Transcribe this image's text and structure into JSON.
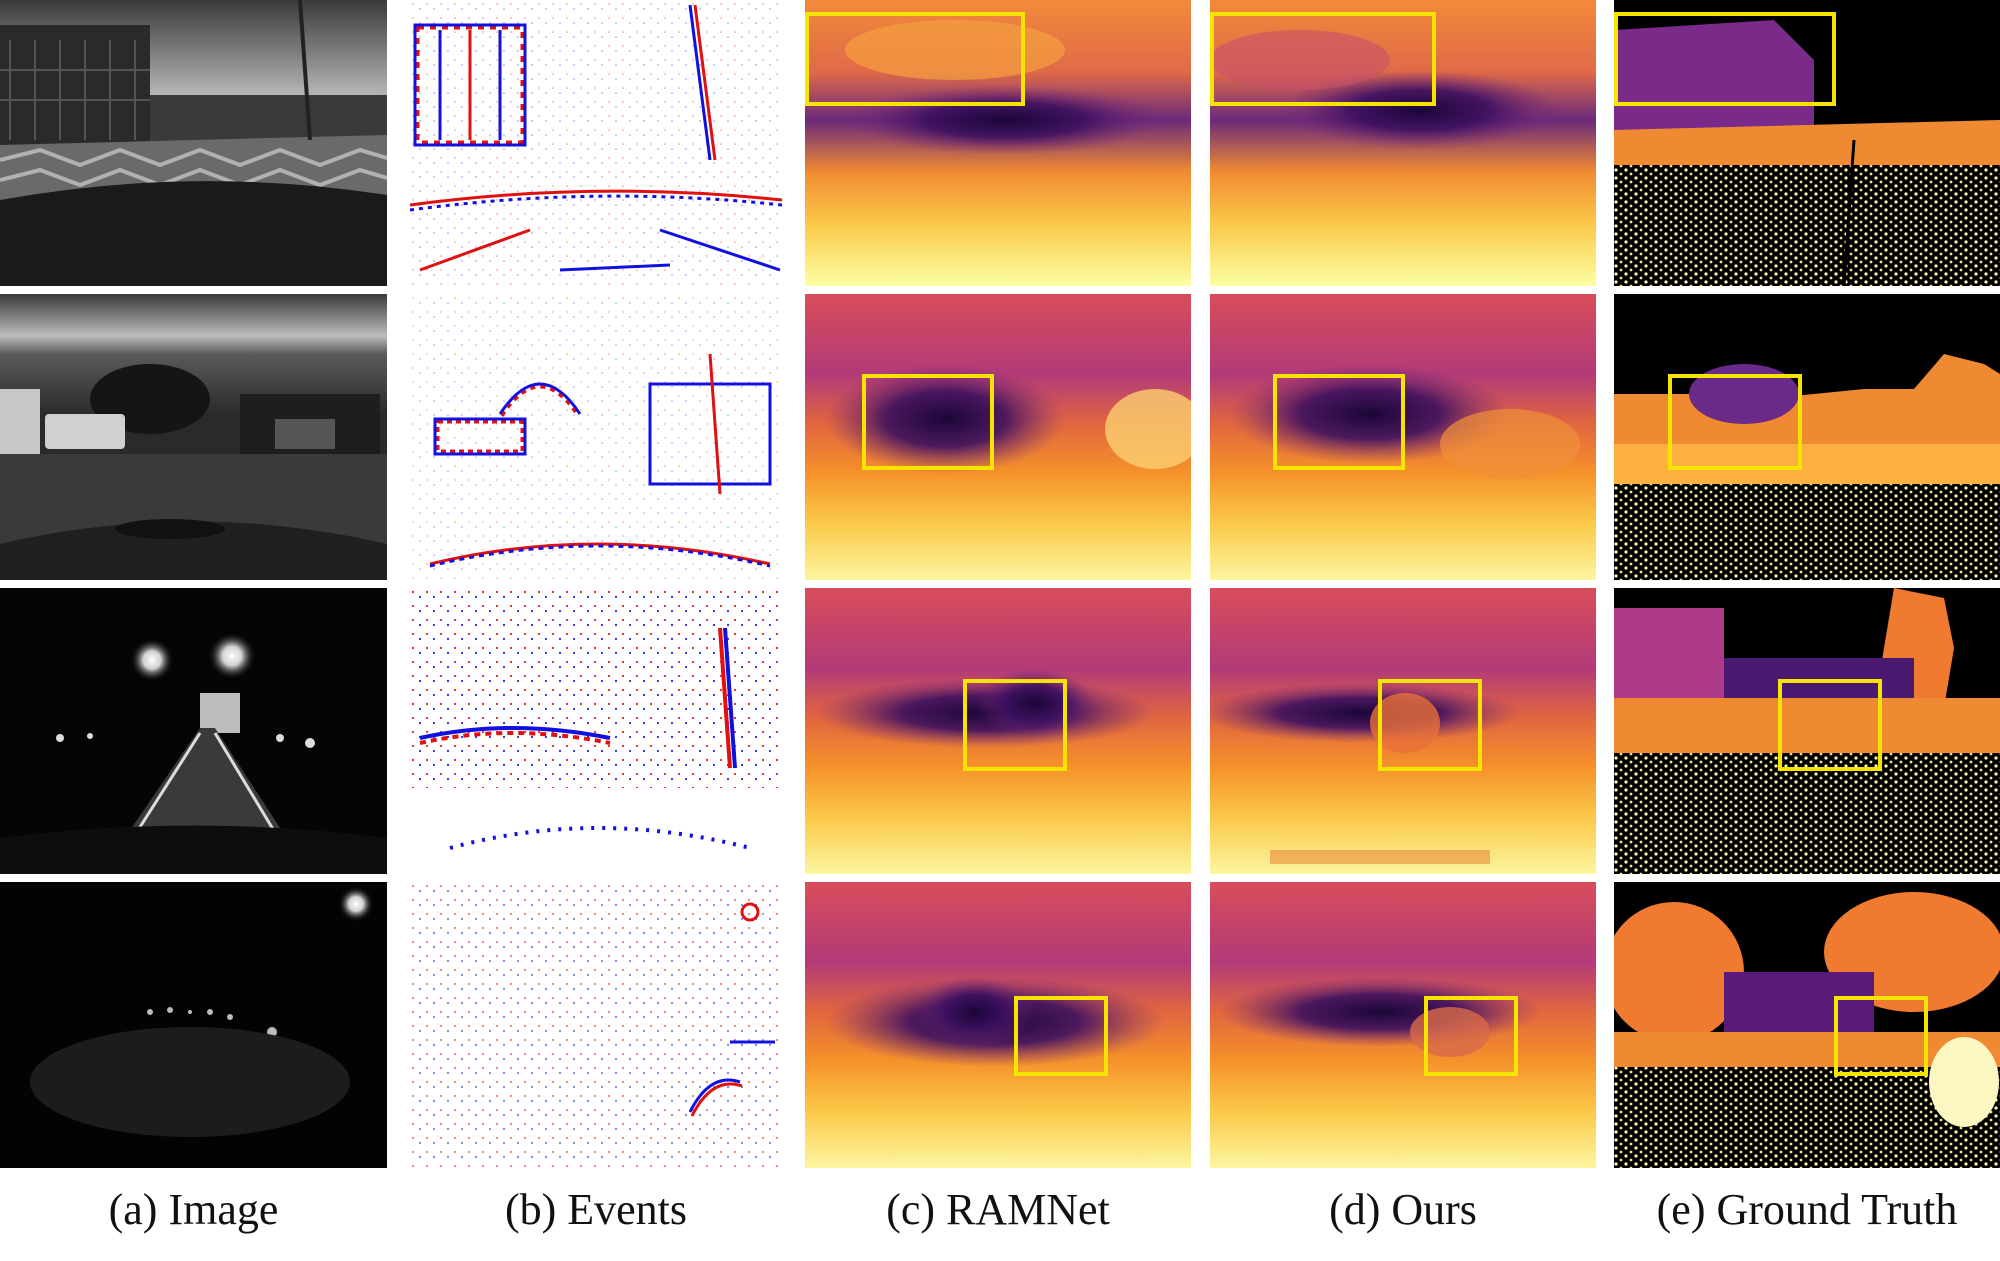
{
  "figure": {
    "columns": [
      {
        "id": "image",
        "caption": "(a) Image"
      },
      {
        "id": "events",
        "caption": "(b) Events"
      },
      {
        "id": "ramnet",
        "caption": "(c) RAMNet"
      },
      {
        "id": "ours",
        "caption": "(d) Ours"
      },
      {
        "id": "ground_truth",
        "caption": "(e) Ground Truth"
      }
    ],
    "rows": [
      {
        "scene": "daytime street with buildings and crosswalk",
        "highlight": "top-left region"
      },
      {
        "scene": "daytime parking lot with vans and tree",
        "highlight": "center region"
      },
      {
        "scene": "night street with streetlights and truck",
        "highlight": "center region"
      },
      {
        "scene": "night street with single streetlight",
        "highlight": "center-right region"
      }
    ],
    "colors": {
      "highlight_box": "#f5e400",
      "event_positive": "#e01010",
      "event_negative": "#1010e0",
      "depth_near": "#fcffa4",
      "depth_mid": "#f1832a",
      "depth_far": "#2e0a56"
    }
  }
}
